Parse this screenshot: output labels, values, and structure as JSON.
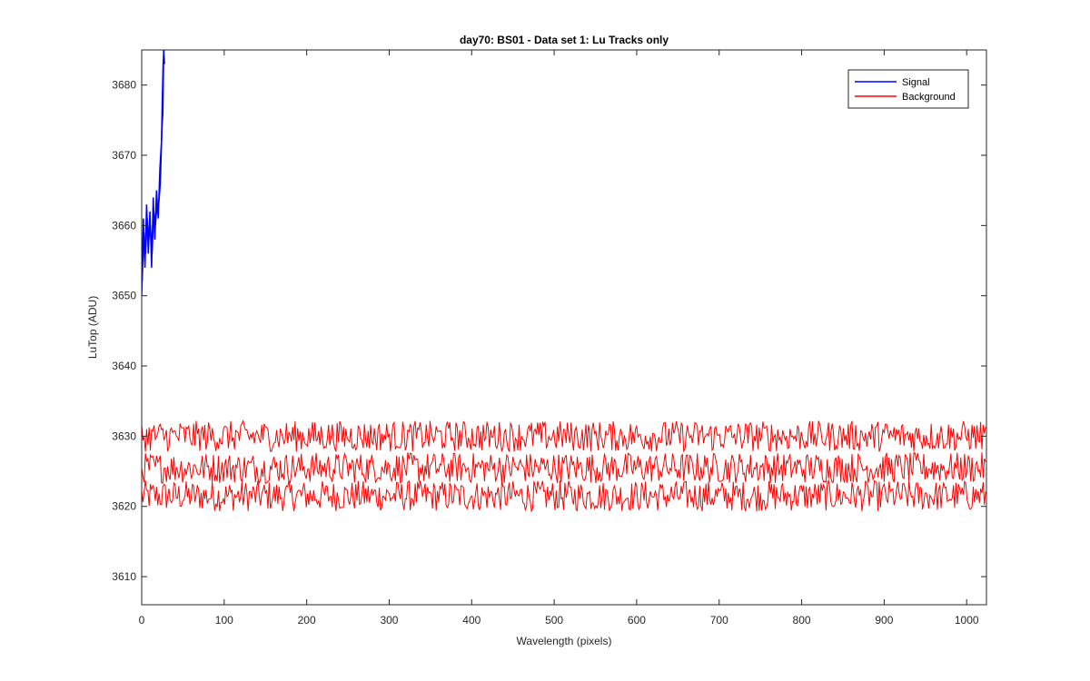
{
  "chart_data": {
    "type": "line",
    "title": "day70: BS01 - Data set 1: Lu Tracks only",
    "xlabel": "Wavelength (pixels)",
    "ylabel": "LuTop (ADU)",
    "xlim": [
      0,
      1024
    ],
    "ylim": [
      3606,
      3685
    ],
    "xticks": [
      0,
      100,
      200,
      300,
      400,
      500,
      600,
      700,
      800,
      900,
      1000
    ],
    "yticks": [
      3610,
      3620,
      3630,
      3640,
      3650,
      3660,
      3670,
      3680
    ],
    "grid": false,
    "legend_position": "top-right",
    "colors": {
      "signal": "#0000ff",
      "background": "#ff0000",
      "axes": "#262626"
    },
    "series": [
      {
        "name": "Signal",
        "color": "#0000ff",
        "x": [
          0,
          2,
          4,
          6,
          8,
          10,
          12,
          14,
          16,
          18,
          20,
          22,
          24,
          25,
          26,
          27
        ],
        "values": [
          3650,
          3661,
          3654,
          3663,
          3656,
          3662,
          3654,
          3664,
          3658,
          3665,
          3661,
          3668,
          3672,
          3678,
          3683,
          3685
        ]
      },
      {
        "name": "Background",
        "color": "#ff0000",
        "x": [
          0,
          1024
        ],
        "values": [
          3625.5,
          3625.5
        ],
        "variant_levels": [
          3621.5,
          3625.5,
          3630
        ],
        "noise_amplitude": 2.2,
        "min": 3616,
        "max": 3635
      }
    ]
  }
}
